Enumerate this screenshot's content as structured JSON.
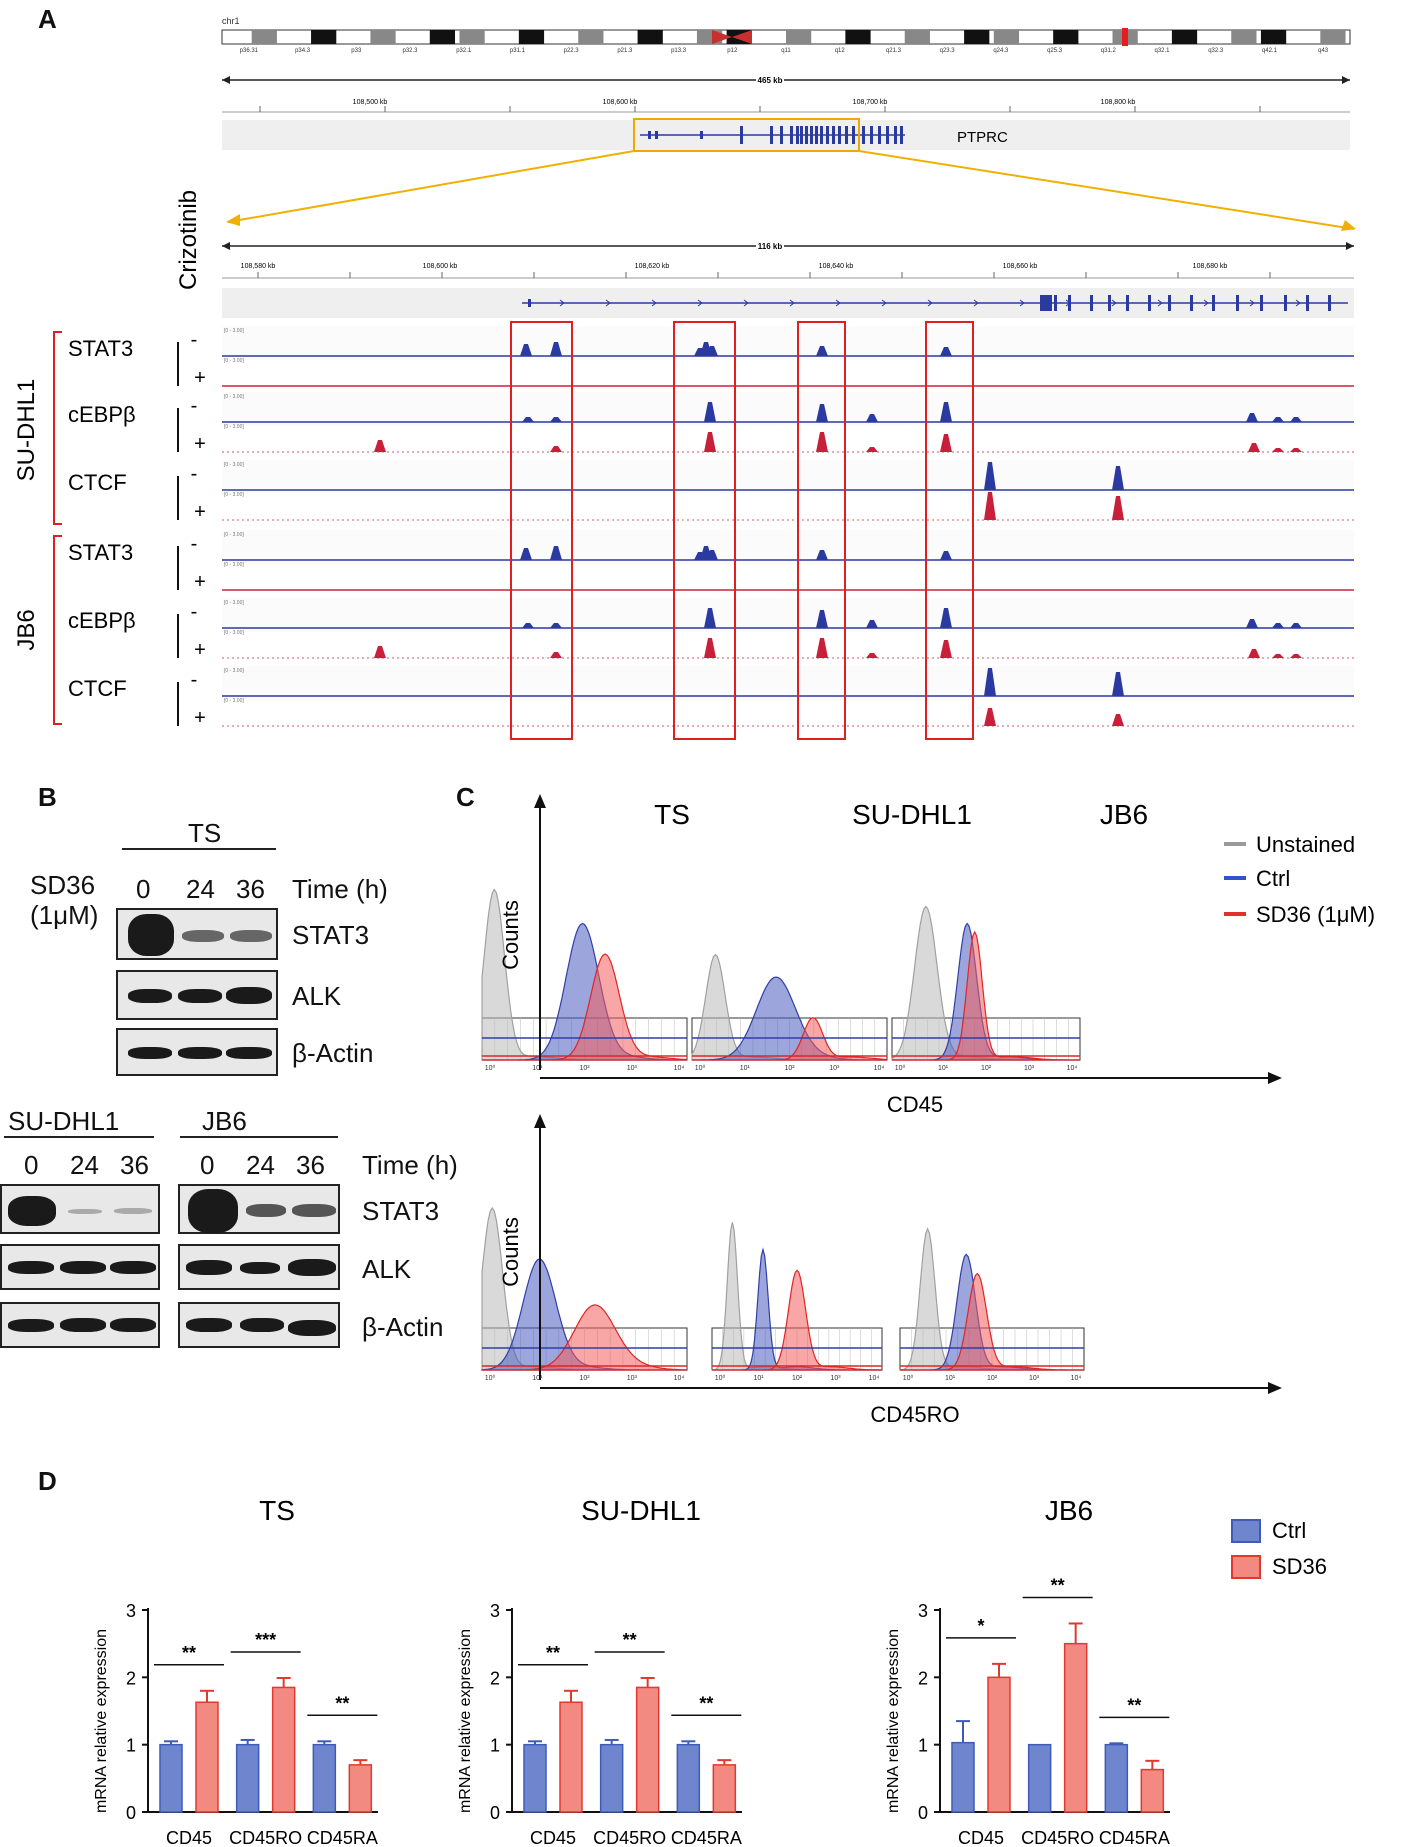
{
  "panels": {
    "a": "A",
    "b": "B",
    "c": "C",
    "d": "D"
  },
  "panel_a": {
    "chrom_label": "chr1",
    "ideogram_bands": [
      "p36.31",
      "p34.3",
      "p33",
      "p32.3",
      "p32.1",
      "p31.1",
      "p22.3",
      "p21.3",
      "p13.3",
      "p12",
      "q11",
      "q12",
      "q21.3",
      "q23.3",
      "q24.3",
      "q25.3",
      "q31.2",
      "q32.1",
      "q32.3",
      "q42.1",
      "q43"
    ],
    "span_top": "465 kb",
    "coords_top": [
      "108,500 kb",
      "108,600 kb",
      "108,700 kb",
      "108,800 kb"
    ],
    "gene": "PTPRC",
    "span_zoom": "116 kb",
    "coords_zoom": [
      "108,580 kb",
      "108,600 kb",
      "108,620 kb",
      "108,640 kb",
      "108,660 kb",
      "108,680 kb"
    ],
    "treatment": "Crizotinib",
    "cell_lines": [
      "SU-DHL1",
      "JB6"
    ],
    "factors": [
      "STAT3",
      "cEBPβ",
      "CTCF"
    ],
    "minus": "-",
    "plus": "+",
    "range_label": "[0 - 3.00]"
  },
  "panel_b": {
    "treatment_label": "SD36",
    "dose_label": "(1μM)",
    "time_label": "Time (h)",
    "timepoints": [
      "0",
      "24",
      "36"
    ],
    "cell_lines": [
      "TS",
      "SU-DHL1",
      "JB6"
    ],
    "proteins": [
      "STAT3",
      "ALK",
      "β-Actin"
    ]
  },
  "panel_c": {
    "cell_lines": [
      "TS",
      "SU-DHL1",
      "JB6"
    ],
    "y_label": "Counts",
    "x_labels": [
      "CD45",
      "CD45RO"
    ],
    "legend": [
      {
        "label": "Unstained",
        "color": "#9a9a9a"
      },
      {
        "label": "Ctrl",
        "color": "#2f56c8"
      },
      {
        "label": "SD36 (1μM)",
        "color": "#e23030"
      }
    ],
    "tick_labels": [
      "10⁰",
      "10¹",
      "10²",
      "10³",
      "10⁴"
    ]
  },
  "colors": {
    "ctrl": "#6f86cf",
    "sd36": "#f38a82",
    "ctrl_edge": "#3f5bb8",
    "sd36_edge": "#e03a30",
    "box": "#e02020",
    "track_blue": "#2a3aa0",
    "track_red": "#c8203a"
  },
  "chart_data": [
    {
      "type": "bar",
      "title": "TS",
      "categories": [
        "CD45",
        "CD45RO",
        "CD45RA"
      ],
      "series": [
        {
          "name": "Ctrl",
          "values": [
            1.0,
            1.0,
            1.0
          ],
          "errors": [
            0.05,
            0.07,
            0.05
          ]
        },
        {
          "name": "SD36",
          "values": [
            1.63,
            1.85,
            0.7
          ],
          "errors": [
            0.17,
            0.14,
            0.07
          ]
        }
      ],
      "significance": [
        "**",
        "***",
        "**"
      ],
      "ylabel": "mRNA relative expression",
      "ylim": [
        0,
        3
      ],
      "yticks": [
        "0",
        "1",
        "2",
        "3"
      ]
    },
    {
      "type": "bar",
      "title": "SU-DHL1",
      "categories": [
        "CD45",
        "CD45RO",
        "CD45RA"
      ],
      "series": [
        {
          "name": "Ctrl",
          "values": [
            1.0,
            1.0,
            1.0
          ],
          "errors": [
            0.05,
            0.07,
            0.05
          ]
        },
        {
          "name": "SD36",
          "values": [
            1.63,
            1.85,
            0.7
          ],
          "errors": [
            0.17,
            0.14,
            0.07
          ]
        }
      ],
      "significance": [
        "**",
        "**",
        "**"
      ],
      "ylabel": "mRNA relative expression",
      "ylim": [
        0,
        3
      ],
      "yticks": [
        "0",
        "1",
        "2",
        "3"
      ]
    },
    {
      "type": "bar",
      "title": "JB6",
      "categories": [
        "CD45",
        "CD45RO",
        "CD45RA"
      ],
      "series": [
        {
          "name": "Ctrl",
          "values": [
            1.03,
            1.0,
            1.0
          ],
          "errors": [
            0.32,
            0.0,
            0.02
          ]
        },
        {
          "name": "SD36",
          "values": [
            2.0,
            2.5,
            0.63
          ],
          "errors": [
            0.2,
            0.3,
            0.13
          ]
        }
      ],
      "significance": [
        "*",
        "**",
        "**"
      ],
      "ylabel": "mRNA relative expression",
      "ylim": [
        0,
        3
      ],
      "yticks": [
        "0",
        "1",
        "2",
        "3"
      ]
    }
  ],
  "panel_d_legend": [
    {
      "label": "Ctrl",
      "color": "#6f86cf"
    },
    {
      "label": "SD36",
      "color": "#f38a82"
    }
  ]
}
